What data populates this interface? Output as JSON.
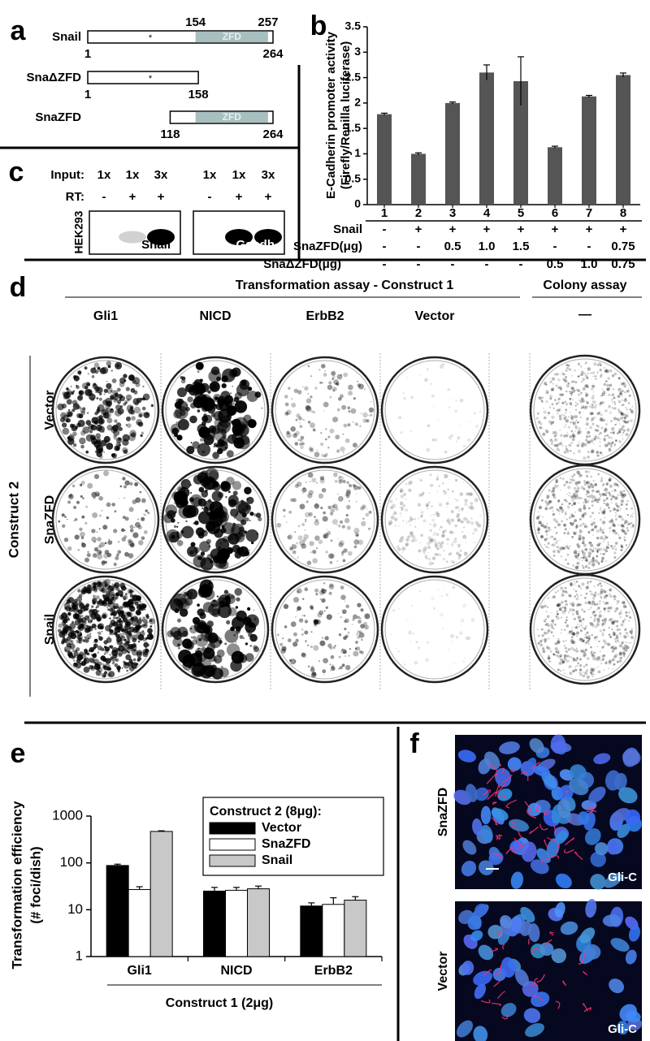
{
  "panel_a": {
    "label": "a",
    "constructs": [
      {
        "name": "Snail",
        "start": 1,
        "end": 264,
        "zfd": [
          154,
          257
        ],
        "zfd_label": "ZFD",
        "asterisk": "*"
      },
      {
        "name": "SnaΔZFD",
        "start": 1,
        "end": 158,
        "asterisk": "*"
      },
      {
        "name": "SnaZFD",
        "start": 118,
        "end": 264,
        "zfd_label": "ZFD"
      }
    ]
  },
  "panel_c": {
    "label": "c",
    "input_label": "Input:",
    "inputs": [
      "1x",
      "1x",
      "3x"
    ],
    "rt_label": "RT:",
    "rt": [
      "-",
      "+",
      "+"
    ],
    "cell": "HEK293",
    "gels": [
      "Snail",
      "Gapdh"
    ]
  },
  "panel_d": {
    "label": "d",
    "header": "Transformation assay - Construct 1",
    "colony_header": "Colony assay",
    "columns": [
      "Gli1",
      "NICD",
      "ErbB2",
      "Vector"
    ],
    "colony_column": "—",
    "rows": [
      "Vector",
      "SnaZFD",
      "Snail"
    ],
    "row_header": "Construct 2"
  },
  "panel_f": {
    "label": "f",
    "images": [
      {
        "name": "SnaZFD",
        "stain": "Gli-C"
      },
      {
        "name": "Vector",
        "stain": "Gli-C"
      }
    ]
  },
  "chart_data": [
    {
      "type": "bar",
      "label": "b",
      "y_label": [
        "E-Cadherin promoter activity",
        "(Firefly/Renilla luciferase)"
      ],
      "categories": [
        "1",
        "2",
        "3",
        "4",
        "5",
        "6",
        "7",
        "8"
      ],
      "values": [
        1.78,
        1.0,
        2.0,
        2.6,
        2.43,
        1.13,
        2.13,
        2.55
      ],
      "errors": [
        0.02,
        0.02,
        0.02,
        0.15,
        0.48,
        0.02,
        0.02,
        0.04
      ],
      "color": "#555555",
      "ylim": [
        0,
        3.5
      ],
      "yticks": [
        0,
        0.5,
        1,
        1.5,
        2,
        2.5,
        3,
        3.5
      ],
      "rows": [
        {
          "name": "Snail",
          "values": [
            "-",
            "+",
            "+",
            "+",
            "+",
            "+",
            "+",
            "+"
          ]
        },
        {
          "name": "SnaZFD(μg)",
          "values": [
            "-",
            "-",
            "0.5",
            "1.0",
            "1.5",
            "-",
            "-",
            "0.75"
          ]
        },
        {
          "name": "SnaΔZFD(μg)",
          "values": [
            "-",
            "-",
            "-",
            "-",
            "-",
            "0.5",
            "1.0",
            "0.75"
          ]
        }
      ]
    },
    {
      "type": "bar",
      "label": "e",
      "log_scale": true,
      "y_label": [
        "Transformation efficiency",
        "(# foci/dish)"
      ],
      "x_label": "Construct 1 (2μg)",
      "legend_title": "Construct 2 (8μg):",
      "categories": [
        "Gli1",
        "NICD",
        "ErbB2"
      ],
      "series": [
        {
          "name": "Vector",
          "color": "#000000",
          "values": [
            88,
            25,
            12
          ],
          "errors": [
            6,
            5,
            2
          ]
        },
        {
          "name": "SnaZFD",
          "color": "#ffffff",
          "values": [
            27,
            26,
            13
          ],
          "errors": [
            4,
            4,
            5
          ]
        },
        {
          "name": "Snail",
          "color": "#c8c8c8",
          "values": [
            470,
            28,
            16
          ],
          "errors": [
            15,
            4,
            3
          ]
        }
      ],
      "ylim": [
        1,
        1000
      ],
      "yticks": [
        1,
        10,
        100,
        1000
      ]
    }
  ]
}
